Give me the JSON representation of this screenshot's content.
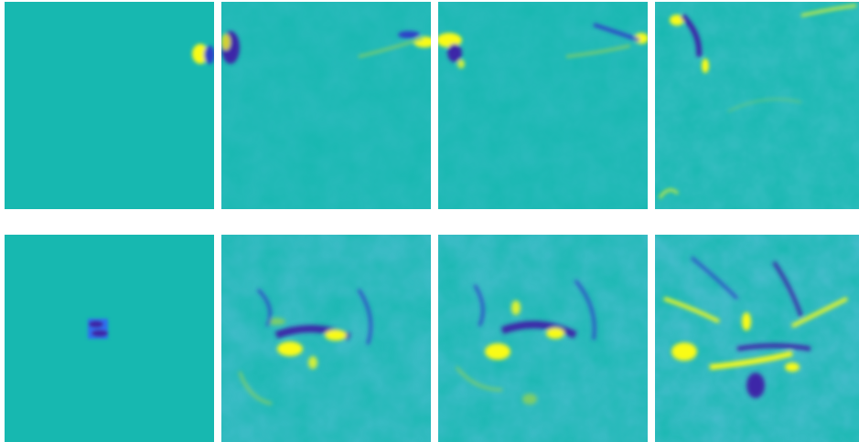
{
  "figure": {
    "rows": 2,
    "columns": 4,
    "colormap": [
      "#3e26a8",
      "#2f6ef0",
      "#17b8b0",
      "#7ccd6a",
      "#f9fb15"
    ],
    "background_color": "#17b8b0",
    "panels": [
      {
        "row": 0,
        "col": 0,
        "state": "initial-condition-edge-blob"
      },
      {
        "row": 0,
        "col": 1,
        "state": "evolved-edge-turbulence"
      },
      {
        "row": 0,
        "col": 2,
        "state": "evolved-edge-turbulence"
      },
      {
        "row": 0,
        "col": 3,
        "state": "evolved-edge-turbulence"
      },
      {
        "row": 1,
        "col": 0,
        "state": "initial-condition-center-blob"
      },
      {
        "row": 1,
        "col": 1,
        "state": "evolved-center-turbulence"
      },
      {
        "row": 1,
        "col": 2,
        "state": "evolved-center-turbulence"
      },
      {
        "row": 1,
        "col": 3,
        "state": "evolved-center-turbulence"
      }
    ]
  }
}
